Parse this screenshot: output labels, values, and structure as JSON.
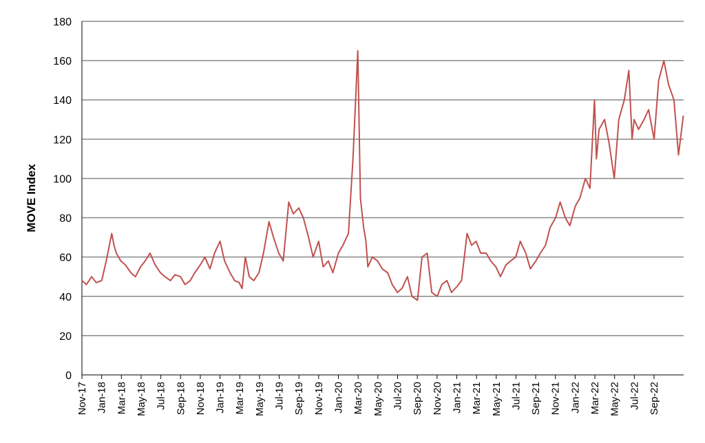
{
  "chart_data": {
    "type": "line",
    "title": "",
    "xlabel": "",
    "ylabel": "MOVE Index",
    "ylim": [
      0,
      180
    ],
    "yticks": [
      0,
      20,
      40,
      60,
      80,
      100,
      120,
      140,
      160,
      180
    ],
    "grid": true,
    "legend": "none",
    "line_color": "#c0504d",
    "grid_color": "#888888",
    "x_tick_labels": [
      "Nov-17",
      "Jan-18",
      "Mar-18",
      "May-18",
      "Jul-18",
      "Sep-18",
      "Nov-18",
      "Jan-19",
      "Mar-19",
      "May-19",
      "Jul-19",
      "Sep-19",
      "Nov-19",
      "Jan-20",
      "Mar-20",
      "May-20",
      "Jul-20",
      "Sep-20",
      "Nov-20",
      "Jan-21",
      "Mar-21",
      "May-21",
      "Jul-21",
      "Sep-21",
      "Nov-21",
      "Jan-22",
      "Mar-22",
      "May-22",
      "Jul-22",
      "Sep-22"
    ],
    "series": [
      {
        "x": [
          "2017-11-01",
          "2017-11-15",
          "2017-12-01",
          "2017-12-15",
          "2018-01-01",
          "2018-01-15",
          "2018-02-01",
          "2018-02-08",
          "2018-02-15",
          "2018-03-01",
          "2018-03-15",
          "2018-04-01",
          "2018-04-15",
          "2018-05-01",
          "2018-05-15",
          "2018-05-30",
          "2018-06-15",
          "2018-07-01",
          "2018-07-15",
          "2018-08-01",
          "2018-08-15",
          "2018-09-01",
          "2018-09-15",
          "2018-10-01",
          "2018-10-15",
          "2018-11-01",
          "2018-11-15",
          "2018-12-01",
          "2018-12-15",
          "2019-01-01",
          "2019-01-15",
          "2019-02-01",
          "2019-02-15",
          "2019-03-01",
          "2019-03-10",
          "2019-03-20",
          "2019-04-01",
          "2019-04-15",
          "2019-05-01",
          "2019-05-15",
          "2019-06-01",
          "2019-06-15",
          "2019-07-01",
          "2019-07-15",
          "2019-08-01",
          "2019-08-15",
          "2019-09-01",
          "2019-09-15",
          "2019-10-01",
          "2019-10-15",
          "2019-11-01",
          "2019-11-15",
          "2019-12-01",
          "2019-12-15",
          "2020-01-01",
          "2020-01-15",
          "2020-02-01",
          "2020-02-15",
          "2020-03-01",
          "2020-03-09",
          "2020-03-19",
          "2020-03-26",
          "2020-04-01",
          "2020-04-15",
          "2020-05-01",
          "2020-05-15",
          "2020-06-01",
          "2020-06-15",
          "2020-07-01",
          "2020-07-15",
          "2020-08-01",
          "2020-08-15",
          "2020-09-01",
          "2020-09-15",
          "2020-10-01",
          "2020-10-15",
          "2020-11-01",
          "2020-11-15",
          "2020-12-01",
          "2020-12-15",
          "2021-01-01",
          "2021-01-15",
          "2021-02-01",
          "2021-02-15",
          "2021-03-01",
          "2021-03-15",
          "2021-04-01",
          "2021-04-15",
          "2021-05-01",
          "2021-05-15",
          "2021-06-01",
          "2021-06-15",
          "2021-07-01",
          "2021-07-15",
          "2021-08-01",
          "2021-08-15",
          "2021-09-01",
          "2021-09-15",
          "2021-10-01",
          "2021-10-15",
          "2021-11-01",
          "2021-11-15",
          "2021-12-01",
          "2021-12-15",
          "2022-01-01",
          "2022-01-15",
          "2022-02-01",
          "2022-02-15",
          "2022-03-01",
          "2022-03-07",
          "2022-03-15",
          "2022-04-01",
          "2022-04-15",
          "2022-05-01",
          "2022-05-15",
          "2022-06-01",
          "2022-06-15",
          "2022-06-25",
          "2022-07-01",
          "2022-07-15",
          "2022-08-01",
          "2022-08-15",
          "2022-09-01",
          "2022-09-15",
          "2022-10-01",
          "2022-10-15",
          "2022-11-01",
          "2022-11-15",
          "2022-11-30"
        ],
        "values": [
          48,
          46,
          50,
          47,
          48,
          58,
          72,
          66,
          62,
          58,
          56,
          52,
          50,
          55,
          58,
          62,
          56,
          52,
          50,
          48,
          51,
          50,
          46,
          48,
          52,
          56,
          60,
          54,
          62,
          68,
          58,
          52,
          48,
          47,
          44,
          60,
          50,
          48,
          52,
          62,
          78,
          70,
          62,
          58,
          88,
          82,
          85,
          80,
          70,
          60,
          68,
          55,
          58,
          52,
          62,
          66,
          72,
          110,
          165,
          90,
          75,
          68,
          55,
          60,
          58,
          54,
          52,
          46,
          42,
          44,
          50,
          40,
          38,
          60,
          62,
          42,
          40,
          46,
          48,
          42,
          45,
          48,
          72,
          66,
          68,
          62,
          62,
          58,
          55,
          50,
          56,
          58,
          60,
          68,
          62,
          54,
          58,
          62,
          66,
          75,
          80,
          88,
          80,
          76,
          86,
          90,
          100,
          95,
          140,
          110,
          125,
          130,
          118,
          100,
          130,
          140,
          155,
          120,
          130,
          125,
          130,
          135,
          120,
          150,
          160,
          148,
          140,
          112,
          132
        ]
      }
    ]
  }
}
